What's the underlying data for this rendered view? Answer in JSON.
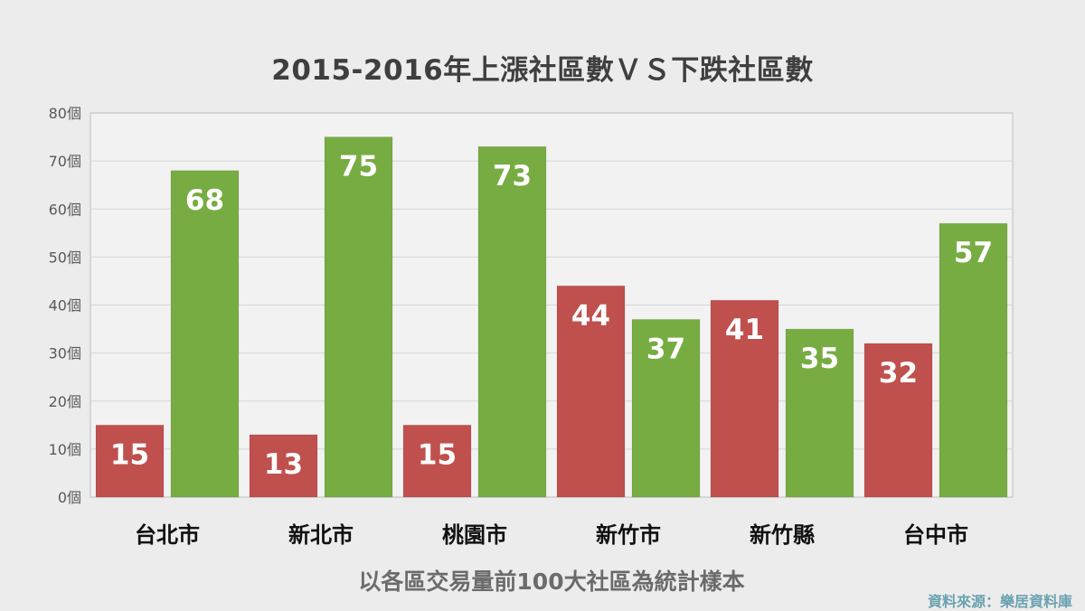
{
  "chart_data": {
    "type": "bar",
    "title": "2015-2016年上漲社區數ＶＳ下跌社區數",
    "subtitle": "以各區交易量前100大社區為統計樣本",
    "source": "資料來源：樂居資料庫",
    "categories": [
      "台北市",
      "新北市",
      "桃園市",
      "新竹市",
      "新竹縣",
      "台中市"
    ],
    "series": [
      {
        "color": "#c0504d",
        "values": [
          15,
          13,
          15,
          44,
          41,
          32
        ]
      },
      {
        "color": "#77ac42",
        "values": [
          68,
          75,
          73,
          37,
          35,
          57
        ]
      }
    ],
    "ylim": [
      0,
      80
    ],
    "yticks": [
      0,
      10,
      20,
      30,
      40,
      50,
      60,
      70,
      80
    ],
    "ytick_suffix": "個",
    "grid": true,
    "data_labels": true
  }
}
